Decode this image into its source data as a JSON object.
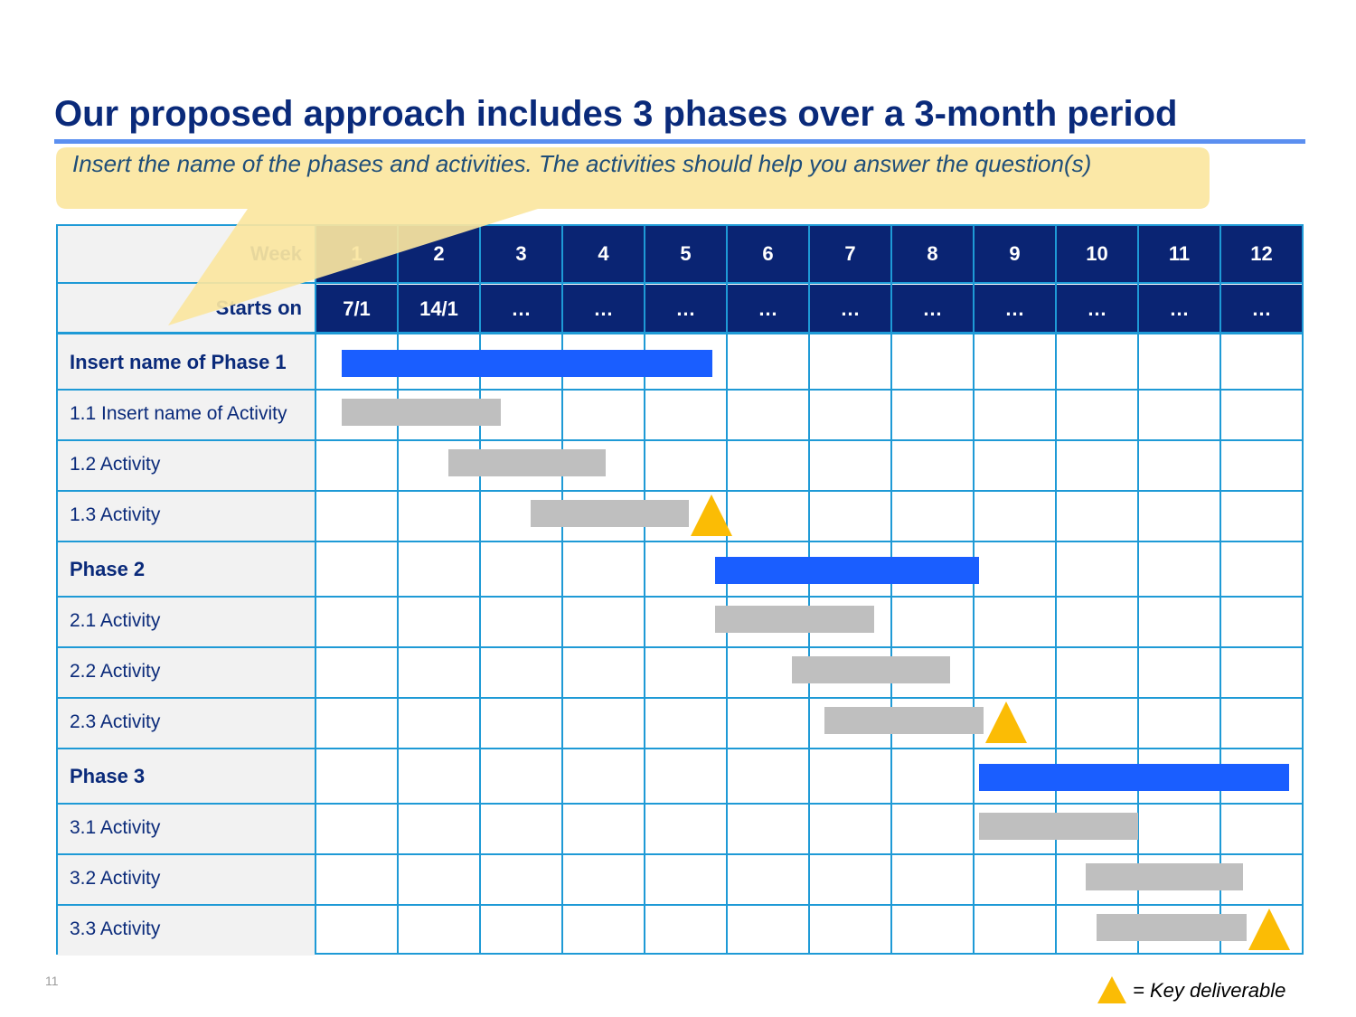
{
  "slide": {
    "title": "Our proposed approach includes 3 phases over a 3-month period",
    "page_number": "11"
  },
  "callout": {
    "text": "Insert the name of the phases and activities. The activities should help you answer the question(s)",
    "color": "#fbe6a0"
  },
  "timeline": {
    "week_label": "Week",
    "starts_label": "Starts on",
    "weeks": [
      "1",
      "2",
      "3",
      "4",
      "5",
      "6",
      "7",
      "8",
      "9",
      "10",
      "11",
      "12"
    ],
    "start_dates": [
      "7/1",
      "14/1",
      "…",
      "…",
      "…",
      "…",
      "…",
      "…",
      "…",
      "…",
      "…",
      "…"
    ]
  },
  "rows": [
    {
      "label": "Insert name of Phase 1",
      "type": "phase",
      "start": 0.32,
      "end": 4.82
    },
    {
      "label": "1.1 Insert name of Activity",
      "type": "activity",
      "start": 0.32,
      "end": 2.25
    },
    {
      "label": "1.2 Activity",
      "type": "activity",
      "start": 1.61,
      "end": 3.53
    },
    {
      "label": "1.3 Activity",
      "type": "activity",
      "start": 2.62,
      "end": 4.54,
      "deliverable": true
    },
    {
      "label": "Phase 2",
      "type": "phase",
      "start": 4.86,
      "end": 8.07
    },
    {
      "label": "2.1 Activity",
      "type": "activity",
      "start": 4.86,
      "end": 6.79
    },
    {
      "label": "2.2 Activity",
      "type": "activity",
      "start": 5.79,
      "end": 7.71
    },
    {
      "label": "2.3 Activity",
      "type": "activity",
      "start": 6.19,
      "end": 8.12,
      "deliverable": true
    },
    {
      "label": "Phase 3",
      "type": "phase",
      "start": 8.07,
      "end": 11.83
    },
    {
      "label": "3.1 Activity",
      "type": "activity",
      "start": 8.07,
      "end": 10.0
    },
    {
      "label": "3.2 Activity",
      "type": "activity",
      "start": 9.36,
      "end": 11.28
    },
    {
      "label": "3.3 Activity",
      "type": "activity",
      "start": 9.49,
      "end": 11.32,
      "deliverable": true
    }
  ],
  "legend": {
    "text": "= Key deliverable"
  },
  "colors": {
    "header_fill": "#0a2473",
    "grid_line": "#1e9ad6",
    "phase_bar": "#1a5eff",
    "activity_bar": "#bfbfbf",
    "deliverable": "#fbbc05"
  }
}
